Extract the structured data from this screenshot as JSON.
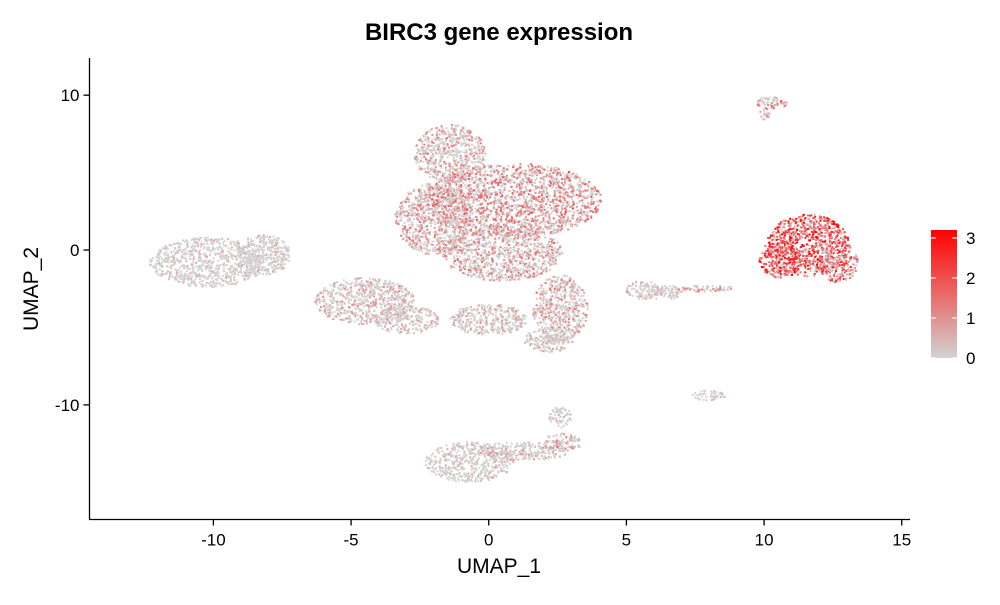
{
  "chart_data": {
    "type": "scatter",
    "title": "BIRC3 gene expression",
    "xlabel": "UMAP_1",
    "ylabel": "UMAP_2",
    "xlim": [
      -14.5,
      15.3
    ],
    "ylim": [
      -17.4,
      12.4
    ],
    "x_ticks": [
      -10,
      -5,
      0,
      5,
      10,
      15
    ],
    "x_tick_labels": [
      "-10",
      "-5",
      "0",
      "5",
      "10",
      "15"
    ],
    "y_ticks": [
      -10,
      0,
      10
    ],
    "y_tick_labels": [
      "-10",
      "0",
      "10"
    ],
    "grid": false,
    "legend_position": "right",
    "color_scale": {
      "low_color": "#d3d3d3",
      "high_color": "#ff0000",
      "min": 0,
      "max": 3.2,
      "ticks": [
        0,
        1,
        2,
        3
      ],
      "tick_labels": [
        "0",
        "1",
        "2",
        "3"
      ]
    },
    "clusters": [
      {
        "cx": -10.2,
        "cy": -0.8,
        "rx": 2.1,
        "ry": 1.6,
        "expression": 0.1
      },
      {
        "cx": -8.2,
        "cy": -0.3,
        "rx": 1.0,
        "ry": 1.3,
        "expression": 0.15
      },
      {
        "cx": -4.5,
        "cy": -3.3,
        "rx": 1.8,
        "ry": 1.5,
        "expression": 0.35
      },
      {
        "cx": -3.0,
        "cy": -4.5,
        "rx": 1.2,
        "ry": 0.9,
        "expression": 0.3
      },
      {
        "cx": -2.0,
        "cy": 2.0,
        "rx": 1.4,
        "ry": 2.3,
        "expression": 0.55
      },
      {
        "cx": -1.4,
        "cy": 6.2,
        "rx": 1.3,
        "ry": 1.9,
        "expression": 0.5
      },
      {
        "cx": 0.9,
        "cy": 3.2,
        "rx": 3.2,
        "ry": 2.4,
        "expression": 0.7
      },
      {
        "cx": 0.5,
        "cy": -0.2,
        "rx": 2.2,
        "ry": 1.8,
        "expression": 0.55
      },
      {
        "cx": 2.6,
        "cy": -3.8,
        "rx": 1.0,
        "ry": 2.2,
        "expression": 0.5
      },
      {
        "cx": 0.0,
        "cy": -4.5,
        "rx": 1.4,
        "ry": 1.0,
        "expression": 0.3
      },
      {
        "cx": 2.2,
        "cy": -5.8,
        "rx": 0.9,
        "ry": 0.8,
        "expression": 0.25
      },
      {
        "cx": 5.6,
        "cy": -2.6,
        "rx": 0.6,
        "ry": 0.6,
        "expression": 0.2
      },
      {
        "cx": 6.4,
        "cy": -2.7,
        "rx": 0.7,
        "ry": 0.5,
        "expression": 0.2
      },
      {
        "cx": 7.8,
        "cy": -2.5,
        "rx": 1.2,
        "ry": 0.2,
        "expression": 0.6
      },
      {
        "cx": 11.6,
        "cy": 0.3,
        "rx": 1.5,
        "ry": 2.0,
        "expression": 1.3
      },
      {
        "cx": 10.6,
        "cy": -0.6,
        "rx": 0.8,
        "ry": 1.2,
        "expression": 1.2
      },
      {
        "cx": 12.7,
        "cy": -0.8,
        "rx": 0.7,
        "ry": 1.3,
        "expression": 1.1
      },
      {
        "cx": 10.3,
        "cy": 9.5,
        "rx": 0.6,
        "ry": 0.4,
        "expression": 0.6
      },
      {
        "cx": 10.0,
        "cy": 8.8,
        "rx": 0.2,
        "ry": 0.4,
        "expression": 0.5
      },
      {
        "cx": 8.0,
        "cy": -9.4,
        "rx": 0.6,
        "ry": 0.35,
        "expression": 0.15
      },
      {
        "cx": -0.7,
        "cy": -13.7,
        "rx": 1.6,
        "ry": 1.3,
        "expression": 0.15
      },
      {
        "cx": 1.2,
        "cy": -13.0,
        "rx": 1.7,
        "ry": 0.6,
        "expression": 0.3
      },
      {
        "cx": 2.7,
        "cy": -12.4,
        "rx": 0.7,
        "ry": 0.6,
        "expression": 0.4
      },
      {
        "cx": 2.6,
        "cy": -10.8,
        "rx": 0.4,
        "ry": 0.7,
        "expression": 0.2
      }
    ]
  }
}
